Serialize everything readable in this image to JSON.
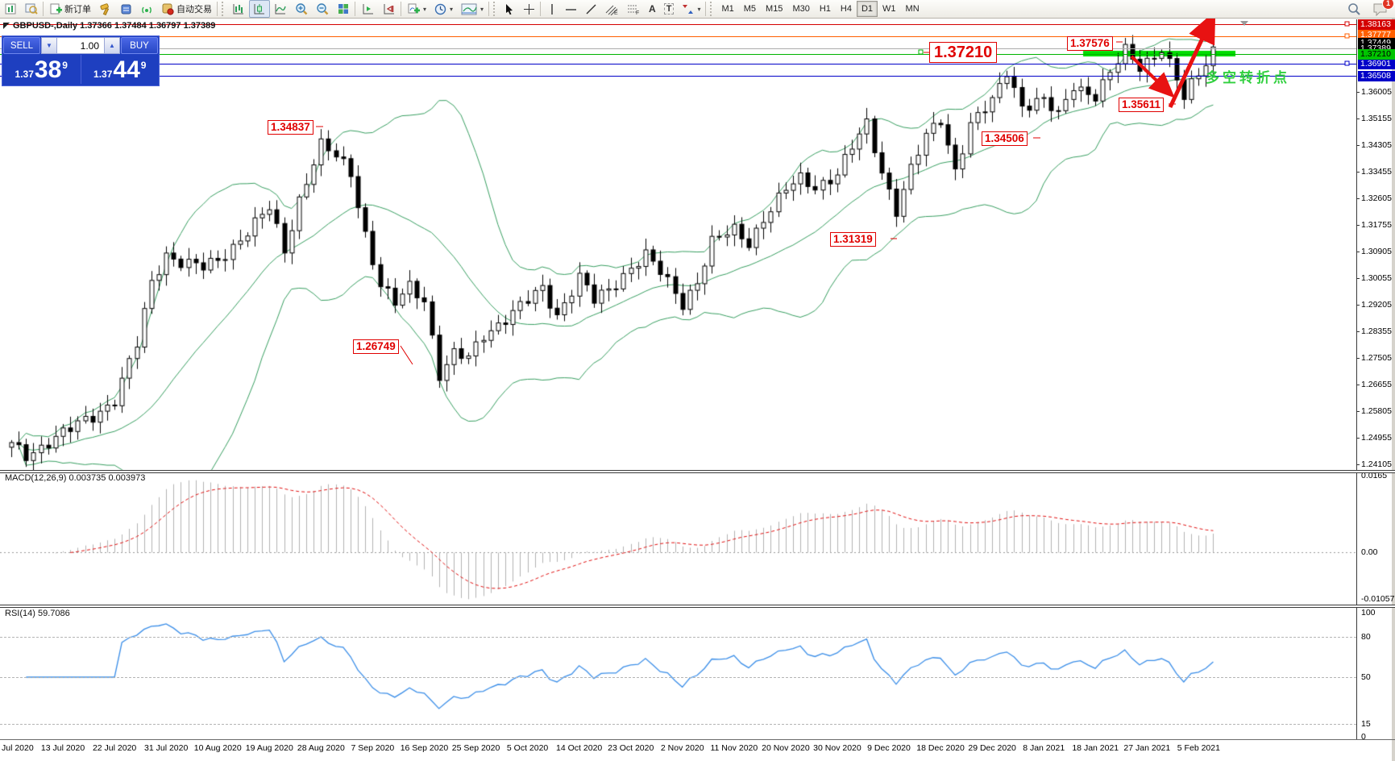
{
  "toolbar": {
    "new_order_label": "新订单",
    "algo_trading_label": "自动交易",
    "timeframes": [
      "M1",
      "M5",
      "M15",
      "M30",
      "H1",
      "H4",
      "D1",
      "W1",
      "MN"
    ],
    "selected_timeframe": "D1",
    "notification_count": "1",
    "text_tool_label": "A",
    "label_tool_label": "T"
  },
  "chart": {
    "title": "GBPUSD-,Daily 1.37366 1.37484 1.36797 1.37389",
    "symbol": "GBPUSD-",
    "period": "Daily",
    "ohlc": {
      "open": "1.37366",
      "high": "1.37484",
      "low": "1.36797",
      "close": "1.37389"
    }
  },
  "one_click": {
    "sell_label": "SELL",
    "buy_label": "BUY",
    "volume": "1.00",
    "sell_price_small": "1.37",
    "sell_price_big": "38",
    "sell_price_sup": "9",
    "buy_price_small": "1.37",
    "buy_price_big": "44",
    "buy_price_sup": "9"
  },
  "levels": [
    {
      "text": "1.38163",
      "color": "#d40000"
    },
    {
      "text": "1.37777",
      "color": "#ff5f00"
    },
    {
      "text": "1.37449",
      "color": "#000000"
    },
    {
      "text": "1.37389",
      "color": "#000000"
    },
    {
      "text": "1.37210",
      "color": "#00c400"
    },
    {
      "text": "1.36901",
      "color": "#0000c8"
    },
    {
      "text": "1.36508",
      "color": "#0000c8"
    }
  ],
  "price_axis_ticks": [
    "1.36005",
    "1.35155",
    "1.34305",
    "1.33455",
    "1.32605",
    "1.31755",
    "1.30905",
    "1.30055",
    "1.29205",
    "1.28355",
    "1.27505",
    "1.26655",
    "1.25805",
    "1.24955",
    "1.24105"
  ],
  "macd": {
    "label": "MACD(12,26,9)",
    "value_main": "0.003735",
    "value_signal": "0.003973",
    "axis": [
      "0.0165",
      "0.00",
      "-0.010571"
    ]
  },
  "rsi": {
    "label": "RSI(14)",
    "value": "59.7086",
    "axis": [
      "100",
      "80",
      "50",
      "15",
      "0"
    ]
  },
  "dates": [
    "Jul 2020",
    "13 Jul 2020",
    "22 Jul 2020",
    "31 Jul 2020",
    "10 Aug 2020",
    "19 Aug 2020",
    "28 Aug 2020",
    "7 Sep 2020",
    "16 Sep 2020",
    "25 Sep 2020",
    "5 Oct 2020",
    "14 Oct 2020",
    "23 Oct 2020",
    "2 Nov 2020",
    "11 Nov 2020",
    "20 Nov 2020",
    "30 Nov 2020",
    "9 Dec 2020",
    "18 Dec 2020",
    "29 Dec 2020",
    "8 Jan 2021",
    "18 Jan 2021",
    "27 Jan 2021",
    "5 Feb 2021"
  ],
  "annotations": [
    {
      "id": "aug-high",
      "text": "1.34837"
    },
    {
      "id": "sep-low",
      "text": "1.26749"
    },
    {
      "id": "dec-low",
      "text": "1.31319"
    },
    {
      "id": "jan-low",
      "text": "1.34506"
    },
    {
      "id": "top-level",
      "text": "1.37576"
    },
    {
      "id": "pull-low",
      "text": "1.35611"
    },
    {
      "id": "key-level",
      "text": "1.37210"
    }
  ],
  "cn_note": "多空转折点",
  "chart_data": {
    "type": "candlestick",
    "symbol": "GBPUSD-",
    "timeframe": "Daily",
    "date_range": [
      "2 Jul 2020",
      "5 Feb 2021"
    ],
    "price_axis": {
      "top": 1.38323,
      "bottom": 1.23924,
      "tick_step": 0.0085
    },
    "indicators": [
      "Bollinger Bands",
      "MACD(12,26,9)",
      "RSI(14)"
    ],
    "macd_axis": [
      0.0165,
      0.0,
      -0.010571
    ],
    "rsi_levels": [
      80,
      50,
      15
    ],
    "horizontal_lines": [
      {
        "price": 1.38163,
        "color": "#d40000"
      },
      {
        "price": 1.37777,
        "color": "#ff5f00"
      },
      {
        "price": 1.37389,
        "color": "#9a9a9a"
      },
      {
        "price": 1.3721,
        "color": "#00c400"
      },
      {
        "price": 1.36901,
        "color": "#0000c8"
      },
      {
        "price": 1.36508,
        "color": "#0000c8"
      }
    ],
    "highlight_bar": {
      "price": 1.3721,
      "color": "#00dd00"
    },
    "close_waypoints": [
      [
        0,
        1.247
      ],
      [
        2,
        1.244
      ],
      [
        5,
        1.2485
      ],
      [
        8,
        1.252
      ],
      [
        11,
        1.2565
      ],
      [
        14,
        1.262
      ],
      [
        17,
        1.279
      ],
      [
        19,
        1.299
      ],
      [
        21,
        1.3085
      ],
      [
        23,
        1.306
      ],
      [
        26,
        1.3035
      ],
      [
        28,
        1.306
      ],
      [
        31,
        1.3135
      ],
      [
        33,
        1.318
      ],
      [
        35,
        1.3225
      ],
      [
        37,
        1.309
      ],
      [
        39,
        1.326
      ],
      [
        41,
        1.338
      ],
      [
        42,
        1.343
      ],
      [
        44,
        1.339
      ],
      [
        46,
        1.334
      ],
      [
        48,
        1.315
      ],
      [
        50,
        1.2985
      ],
      [
        52,
        1.292
      ],
      [
        54,
        1.2975
      ],
      [
        56,
        1.294
      ],
      [
        58,
        1.27
      ],
      [
        60,
        1.276
      ],
      [
        62,
        1.2745
      ],
      [
        64,
        1.2825
      ],
      [
        67,
        1.288
      ],
      [
        70,
        1.293
      ],
      [
        72,
        1.297
      ],
      [
        74,
        1.289
      ],
      [
        77,
        1.301
      ],
      [
        79,
        1.293
      ],
      [
        81,
        1.2965
      ],
      [
        84,
        1.3045
      ],
      [
        86,
        1.308
      ],
      [
        88,
        1.302
      ],
      [
        91,
        1.2925
      ],
      [
        93,
        1.3
      ],
      [
        95,
        1.312
      ],
      [
        98,
        1.3155
      ],
      [
        100,
        1.312
      ],
      [
        102,
        1.32
      ],
      [
        105,
        1.3285
      ],
      [
        107,
        1.332
      ],
      [
        109,
        1.33
      ],
      [
        112,
        1.334
      ],
      [
        114,
        1.342
      ],
      [
        116,
        1.3495
      ],
      [
        118,
        1.335
      ],
      [
        120,
        1.3225
      ],
      [
        122,
        1.335
      ],
      [
        124,
        1.3455
      ],
      [
        126,
        1.3515
      ],
      [
        128,
        1.3355
      ],
      [
        130,
        1.3495
      ],
      [
        133,
        1.3565
      ],
      [
        135,
        1.367
      ],
      [
        137,
        1.356
      ],
      [
        140,
        1.357
      ],
      [
        142,
        1.352
      ],
      [
        144,
        1.3625
      ],
      [
        147,
        1.359
      ],
      [
        149,
        1.3655
      ],
      [
        151,
        1.373
      ],
      [
        153,
        1.3685
      ],
      [
        156,
        1.374
      ],
      [
        158,
        1.3635
      ],
      [
        159,
        1.3575
      ],
      [
        160,
        1.362
      ],
      [
        161,
        1.366
      ],
      [
        162,
        1.37
      ],
      [
        163,
        1.3739
      ]
    ]
  }
}
